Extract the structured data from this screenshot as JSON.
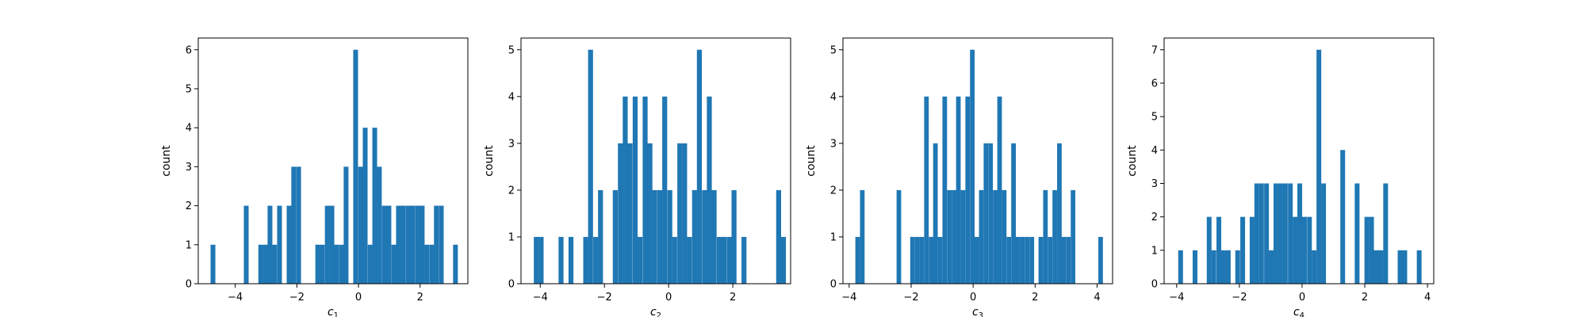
{
  "chart_data": [
    {
      "type": "bar",
      "xlabel": "c",
      "xlabel_sub": "1",
      "ylabel": "count",
      "xticks": [
        "−4",
        "−2",
        "0",
        "2"
      ],
      "xtick_values": [
        -4,
        -2,
        0,
        2
      ],
      "yticks": [
        "0",
        "1",
        "2",
        "3",
        "4",
        "5",
        "6"
      ],
      "ylim": [
        0,
        6.3
      ],
      "xlim": [
        -5.2,
        3.55
      ],
      "bin_width": 0.155,
      "bin_starts": [
        -4.8,
        -3.72,
        -3.25,
        -3.1,
        -2.95,
        -2.8,
        -2.64,
        -2.49,
        -2.33,
        -2.18,
        -2.02,
        -1.4,
        -1.25,
        -1.09,
        -0.94,
        -0.79,
        -0.63,
        -0.48,
        -0.32,
        -0.17,
        -0.01,
        0.14,
        0.3,
        0.45,
        0.6,
        0.76,
        0.91,
        1.07,
        1.22,
        1.37,
        1.53,
        1.68,
        1.84,
        1.99,
        2.14,
        2.3,
        2.45,
        2.61,
        2.76,
        3.07
      ],
      "values": [
        1,
        2,
        1,
        1,
        2,
        1,
        2,
        0,
        2,
        3,
        3,
        1,
        1,
        2,
        2,
        1,
        1,
        3,
        0,
        6,
        3,
        4,
        1,
        4,
        3,
        2,
        2,
        1,
        2,
        2,
        2,
        2,
        2,
        2,
        1,
        1,
        2,
        2,
        0,
        1
      ]
    },
    {
      "type": "bar",
      "xlabel": "c",
      "xlabel_sub": "2",
      "ylabel": "count",
      "xticks": [
        "−4",
        "−2",
        "0",
        "2"
      ],
      "xtick_values": [
        -4,
        -2,
        0,
        2
      ],
      "yticks": [
        "0",
        "1",
        "2",
        "3",
        "4",
        "5"
      ],
      "ylim": [
        0,
        5.25
      ],
      "xlim": [
        -4.6,
        3.8
      ],
      "bin_width": 0.154,
      "bin_starts": [
        -4.2,
        -4.05,
        -3.43,
        -3.12,
        -2.66,
        -2.51,
        -2.35,
        -2.2,
        -1.74,
        -1.58,
        -1.43,
        -1.28,
        -1.12,
        -0.97,
        -0.81,
        -0.66,
        -0.51,
        -0.35,
        -0.2,
        -0.04,
        0.11,
        0.27,
        0.42,
        0.57,
        0.73,
        0.88,
        1.04,
        1.19,
        1.34,
        1.5,
        1.65,
        1.81,
        1.96,
        2.27,
        3.35,
        3.5
      ],
      "values": [
        1,
        1,
        1,
        1,
        1,
        5,
        1,
        2,
        2,
        3,
        4,
        3,
        4,
        1,
        4,
        3,
        2,
        2,
        4,
        2,
        1,
        3,
        3,
        1,
        2,
        5,
        2,
        4,
        2,
        1,
        1,
        1,
        2,
        1,
        2,
        1
      ]
    },
    {
      "type": "bar",
      "xlabel": "c",
      "xlabel_sub": "3",
      "ylabel": "count",
      "xticks": [
        "−4",
        "−2",
        "0",
        "2",
        "4"
      ],
      "xtick_values": [
        -4,
        -2,
        0,
        2,
        4
      ],
      "yticks": [
        "0",
        "1",
        "2",
        "3",
        "4",
        "5"
      ],
      "ylim": [
        0,
        5.25
      ],
      "xlim": [
        -4.2,
        4.5
      ],
      "bin_width": 0.148,
      "bin_starts": [
        -3.8,
        -3.65,
        -2.47,
        -2.03,
        -1.88,
        -1.73,
        -1.58,
        -1.43,
        -1.29,
        -1.14,
        -0.99,
        -0.84,
        -0.69,
        -0.55,
        -0.4,
        -0.25,
        -0.1,
        0.04,
        0.19,
        0.34,
        0.49,
        0.64,
        0.78,
        0.93,
        1.08,
        1.23,
        1.37,
        1.52,
        1.67,
        1.82,
        2.11,
        2.26,
        2.41,
        2.56,
        2.71,
        2.85,
        3.0,
        3.15,
        4.04
      ],
      "values": [
        1,
        2,
        2,
        1,
        1,
        1,
        4,
        1,
        3,
        1,
        4,
        2,
        2,
        4,
        2,
        4,
        5,
        1,
        2,
        3,
        3,
        2,
        4,
        2,
        1,
        3,
        1,
        1,
        1,
        1,
        1,
        2,
        1,
        2,
        3,
        1,
        1,
        2,
        1
      ]
    },
    {
      "type": "bar",
      "xlabel": "c",
      "xlabel_sub": "4",
      "ylabel": "count",
      "xticks": [
        "−4",
        "−2",
        "0",
        "2",
        "4"
      ],
      "xtick_values": [
        -4,
        -2,
        0,
        2,
        4
      ],
      "yticks": [
        "0",
        "1",
        "2",
        "3",
        "4",
        "5",
        "6",
        "7"
      ],
      "ylim": [
        0,
        7.35
      ],
      "xlim": [
        -4.4,
        4.2
      ],
      "bin_width": 0.152,
      "bin_starts": [
        -3.95,
        -3.49,
        -3.04,
        -2.89,
        -2.73,
        -2.58,
        -2.43,
        -2.13,
        -1.97,
        -1.67,
        -1.52,
        -1.37,
        -1.21,
        -1.06,
        -0.91,
        -0.76,
        -0.61,
        -0.45,
        -0.3,
        -0.15,
        0.0,
        0.16,
        0.31,
        0.46,
        0.61,
        0.77,
        0.92,
        1.22,
        1.38,
        1.68,
        1.83,
        1.99,
        2.14,
        2.29,
        2.44,
        2.59,
        3.05,
        3.2,
        3.66
      ],
      "values": [
        1,
        1,
        2,
        1,
        2,
        1,
        1,
        1,
        2,
        2,
        3,
        3,
        3,
        1,
        3,
        3,
        3,
        3,
        2,
        3,
        2,
        2,
        1,
        7,
        3,
        0,
        0,
        4,
        0,
        3,
        0,
        2,
        2,
        1,
        1,
        3,
        1,
        1,
        1
      ]
    }
  ],
  "colors": {
    "bar": "#1f77b4",
    "axis": "#000000",
    "background": "#ffffff"
  }
}
